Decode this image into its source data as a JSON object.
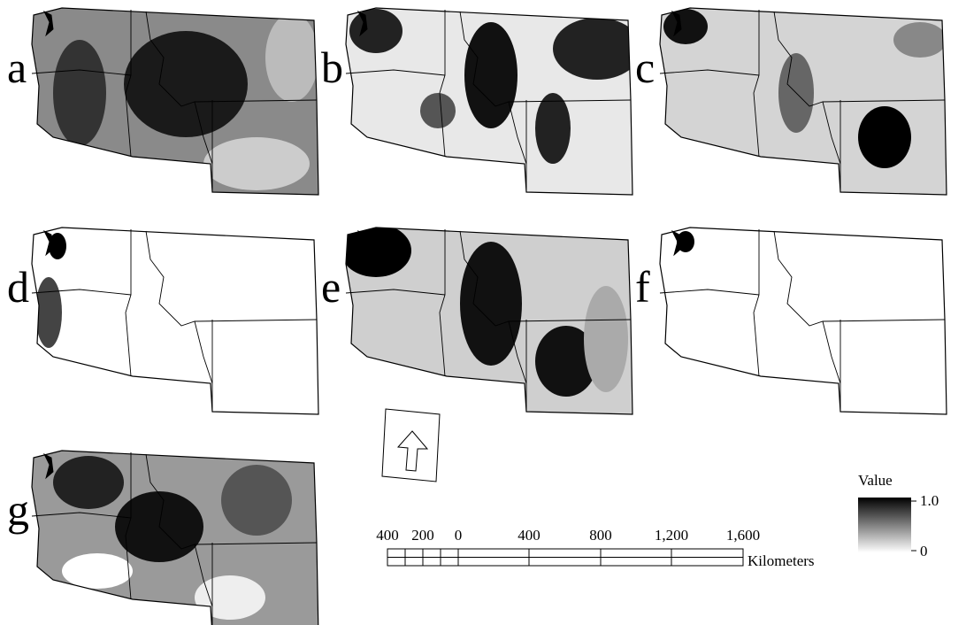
{
  "panels": [
    {
      "label": "a"
    },
    {
      "label": "b"
    },
    {
      "label": "c"
    },
    {
      "label": "d"
    },
    {
      "label": "e"
    },
    {
      "label": "f"
    },
    {
      "label": "g"
    }
  ],
  "legend": {
    "title": "Value",
    "max": "1.0",
    "min": "0"
  },
  "scale_bar": {
    "labels": [
      "400",
      "200",
      "0",
      "400",
      "800",
      "1,200",
      "1,600"
    ],
    "unit": "Kilometers"
  }
}
